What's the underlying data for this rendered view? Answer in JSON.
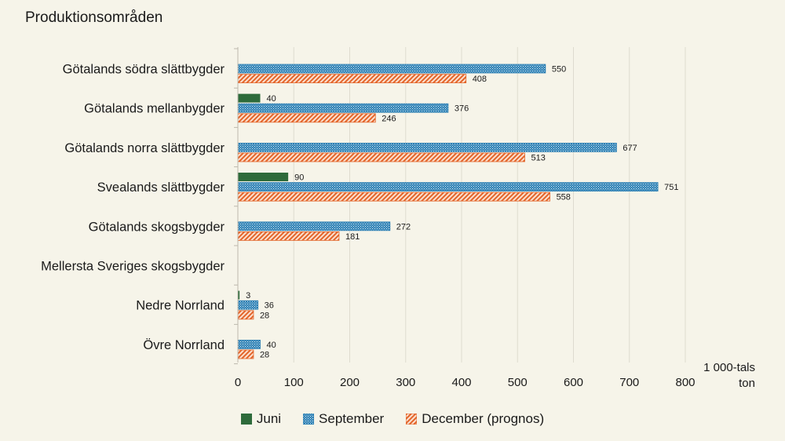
{
  "header": {
    "title": "Produktionsområden"
  },
  "colors": {
    "juni": "#2e6b3b",
    "september": "#2c7fb3",
    "december": "#e3652a",
    "grid": "#dedbcf",
    "background": "#f6f4e9"
  },
  "chart_data": {
    "type": "bar",
    "orientation": "horizontal",
    "title": "Produktionsområden",
    "xlabel": "1 000-tals ton",
    "ylabel": "",
    "xlim": [
      0,
      800
    ],
    "xticks": [
      0,
      100,
      200,
      300,
      400,
      500,
      600,
      700,
      800
    ],
    "grid": true,
    "legend_position": "bottom",
    "categories": [
      "Götalands södra slättbygder",
      "Götalands mellanbygder",
      "Götalands norra slättbygder",
      "Svealands slättbygder",
      "Götalands skogsbygder",
      "Mellersta Sveriges skogsbygder",
      "Nedre Norrland",
      "Övre Norrland"
    ],
    "series": [
      {
        "name": "Juni",
        "pattern": "solid",
        "color": "#2e6b3b",
        "values": [
          null,
          40,
          null,
          90,
          null,
          null,
          3,
          null
        ]
      },
      {
        "name": "September",
        "pattern": "dots",
        "color": "#2c7fb3",
        "values": [
          550,
          376,
          677,
          751,
          272,
          null,
          36,
          40
        ]
      },
      {
        "name": "December (prognos)",
        "pattern": "diagonal",
        "color": "#e3652a",
        "values": [
          408,
          246,
          513,
          558,
          181,
          null,
          28,
          28
        ]
      }
    ]
  }
}
